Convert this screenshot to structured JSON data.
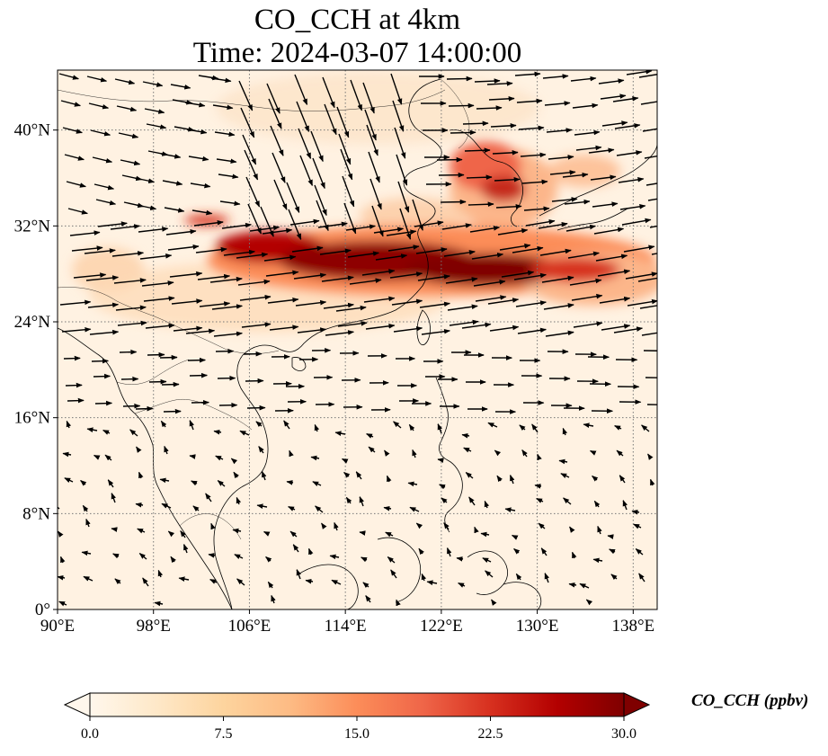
{
  "title": {
    "line1": "CO_CCH at 4km",
    "line2": "Time: 2024-03-07 14:00:00"
  },
  "map": {
    "extent": {
      "lon": [
        90,
        140
      ],
      "lat": [
        0,
        45
      ]
    },
    "lon_ticks": [
      90,
      98,
      106,
      114,
      122,
      130,
      138
    ],
    "lon_tick_labels": [
      "90°E",
      "98°E",
      "106°E",
      "114°E",
      "122°E",
      "130°E",
      "138°E"
    ],
    "lat_ticks": [
      0,
      8,
      16,
      24,
      32,
      40
    ],
    "lat_tick_labels": [
      "0°",
      "8°N",
      "16°N",
      "24°N",
      "32°N",
      "40°N"
    ],
    "gridlines": true,
    "colormap": "OrRd"
  },
  "colorbar": {
    "label": "CO_CCH (ppbv)",
    "range": [
      0,
      30
    ],
    "ticks": [
      0,
      7.5,
      15,
      22.5,
      30
    ],
    "tick_labels": [
      "0.0",
      "7.5",
      "15.0",
      "22.5",
      "30.0"
    ],
    "extend": "both",
    "colors": [
      "#fff7ec",
      "#fee8c8",
      "#fdd49e",
      "#fdbb84",
      "#fc8d59",
      "#ef6548",
      "#d7301f",
      "#b30000",
      "#7f0000"
    ]
  }
}
